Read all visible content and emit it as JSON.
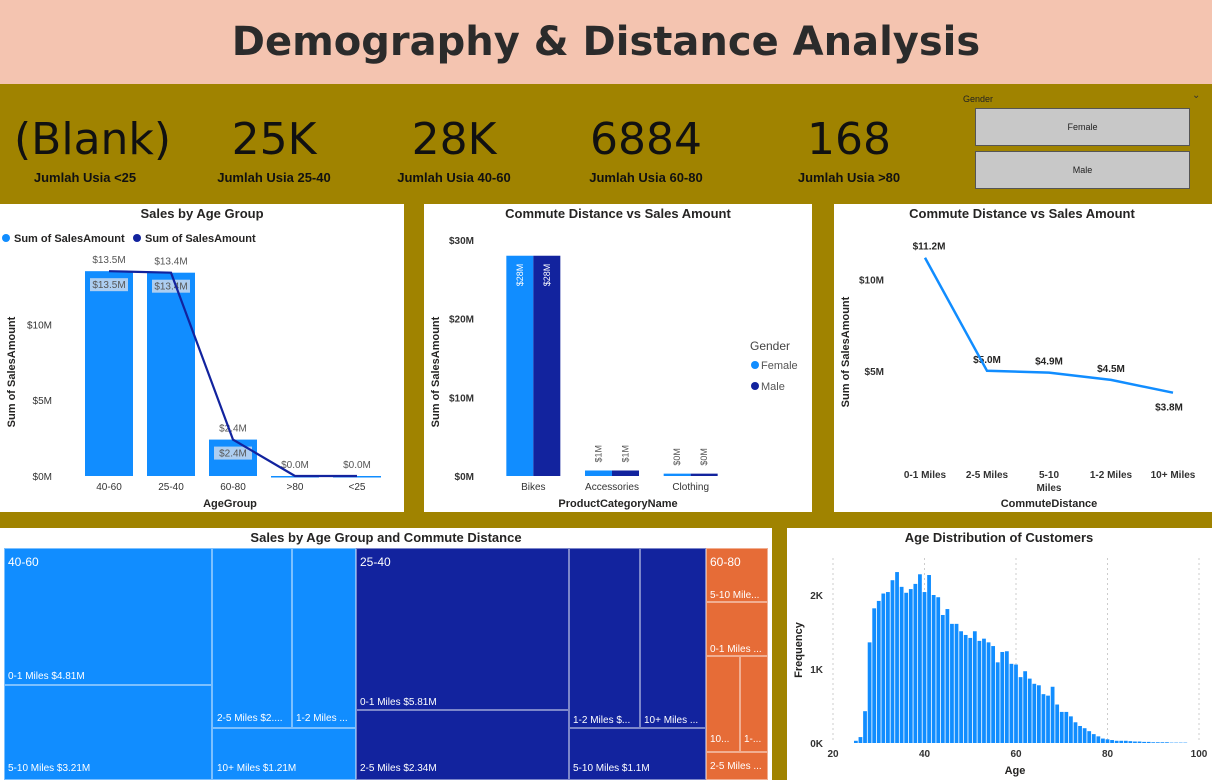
{
  "title": "Demography & Distance Analysis",
  "kpis": [
    {
      "value": "(Blank)",
      "label": "Jumlah Usia <25"
    },
    {
      "value": "25K",
      "label": "Jumlah Usia 25-40"
    },
    {
      "value": "28K",
      "label": "Jumlah Usia 40-60"
    },
    {
      "value": "6884",
      "label": "Jumlah Usia 60-80"
    },
    {
      "value": "168",
      "label": "Jumlah Usia >80"
    }
  ],
  "slicer": {
    "title": "Gender",
    "options": [
      "Female",
      "Male"
    ],
    "chevron": "chevron-down-icon"
  },
  "colors": {
    "female": "#118dff",
    "male": "#12239e",
    "orange": "#e66c37"
  },
  "chart_data": [
    {
      "id": "age_group",
      "type": "bar",
      "title": "Sales by Age Group",
      "legend": [
        "Sum of SalesAmount",
        "Sum of SalesAmount"
      ],
      "xlabel": "AgeGroup",
      "ylabel": "Sum of SalesAmount",
      "categories": [
        "40-60",
        "25-40",
        "60-80",
        ">80",
        "<25"
      ],
      "values": [
        13.5,
        13.4,
        2.4,
        0.0,
        0.0
      ],
      "labels": [
        "$13.5M",
        "$13.4M",
        "$2.4M",
        "$0.0M",
        "$0.0M"
      ],
      "yticks": [
        "$0M",
        "$5M",
        "$10M"
      ],
      "ylim": [
        0,
        14.5
      ]
    },
    {
      "id": "commute_category",
      "type": "bar",
      "title": "Commute Distance vs Sales Amount",
      "xlabel": "ProductCategoryName",
      "ylabel": "Sum of SalesAmount",
      "legend_title": "Gender",
      "categories": [
        "Bikes",
        "Accessories",
        "Clothing"
      ],
      "series": [
        {
          "name": "Female",
          "values": [
            28,
            0.7,
            0.3
          ],
          "labels": [
            "$28M",
            "$1M",
            "$0M"
          ]
        },
        {
          "name": "Male",
          "values": [
            28,
            0.7,
            0.3
          ],
          "labels": [
            "$28M",
            "$1M",
            "$0M"
          ]
        }
      ],
      "yticks": [
        "$0M",
        "$10M",
        "$20M",
        "$30M"
      ],
      "ylim": [
        0,
        30
      ]
    },
    {
      "id": "commute_line",
      "type": "line",
      "title": "Commute Distance vs Sales Amount",
      "xlabel": "CommuteDistance",
      "ylabel": "Sum of SalesAmount",
      "categories": [
        "0-1 Miles",
        "2-5 Miles",
        "5-10 Miles",
        "1-2 Miles",
        "10+ Miles"
      ],
      "values": [
        11.2,
        5.0,
        4.9,
        4.5,
        3.8
      ],
      "labels": [
        "$11.2M",
        "$5.0M",
        "$4.9M",
        "$4.5M",
        "$3.8M"
      ],
      "yticks": [
        "$5M",
        "$10M"
      ],
      "ylim": [
        0,
        12.5
      ]
    },
    {
      "id": "treemap",
      "type": "treemap",
      "title": "Sales by Age Group and Commute Distance",
      "groups": [
        {
          "name": "40-60",
          "items": [
            "0-1 Miles $4.81M",
            "5-10 Miles $3.21M",
            "2-5 Miles $2....",
            "10+ Miles $1.21M",
            "1-2 Miles ..."
          ]
        },
        {
          "name": "25-40",
          "items": [
            "0-1 Miles $5.81M",
            "2-5 Miles $2.34M",
            "1-2 Miles $...",
            "5-10 Miles $1.1M",
            "10+ Miles ..."
          ]
        },
        {
          "name": "60-80",
          "items": [
            "5-10 Mile...",
            "0-1 Miles ...",
            "10...",
            "1-...",
            "2-5 Miles ..."
          ]
        }
      ]
    },
    {
      "id": "age_hist",
      "type": "bar",
      "title": "Age Distribution of Customers",
      "xlabel": "Age",
      "ylabel": "Frequency",
      "xticks": [
        "20",
        "40",
        "60",
        "80",
        "100"
      ],
      "yticks": [
        "0K",
        "1K",
        "2K"
      ],
      "xlim": [
        20,
        100
      ],
      "ylim": [
        0,
        2500
      ],
      "x": [
        25,
        26,
        27,
        28,
        29,
        30,
        31,
        32,
        33,
        34,
        35,
        36,
        37,
        38,
        39,
        40,
        41,
        42,
        43,
        44,
        45,
        46,
        47,
        48,
        49,
        50,
        51,
        52,
        53,
        54,
        55,
        56,
        57,
        58,
        59,
        60,
        61,
        62,
        63,
        64,
        65,
        66,
        67,
        68,
        69,
        70,
        71,
        72,
        73,
        74,
        75,
        76,
        77,
        78,
        79,
        80,
        81,
        82,
        83,
        84,
        85,
        86,
        87,
        88,
        89,
        90,
        91,
        92,
        93,
        94,
        95,
        96,
        97
      ],
      "values": [
        30,
        80,
        430,
        1360,
        1820,
        1920,
        2020,
        2040,
        2200,
        2310,
        2110,
        2030,
        2080,
        2150,
        2280,
        2040,
        2270,
        2000,
        1970,
        1730,
        1810,
        1610,
        1610,
        1510,
        1460,
        1420,
        1510,
        1380,
        1410,
        1360,
        1310,
        1090,
        1230,
        1240,
        1070,
        1060,
        890,
        970,
        870,
        800,
        780,
        660,
        640,
        760,
        520,
        420,
        420,
        360,
        280,
        230,
        200,
        160,
        120,
        90,
        60,
        50,
        40,
        30,
        30,
        30,
        25,
        20,
        20,
        15,
        15,
        10,
        10,
        10,
        10,
        5,
        5,
        5,
        5
      ]
    }
  ]
}
